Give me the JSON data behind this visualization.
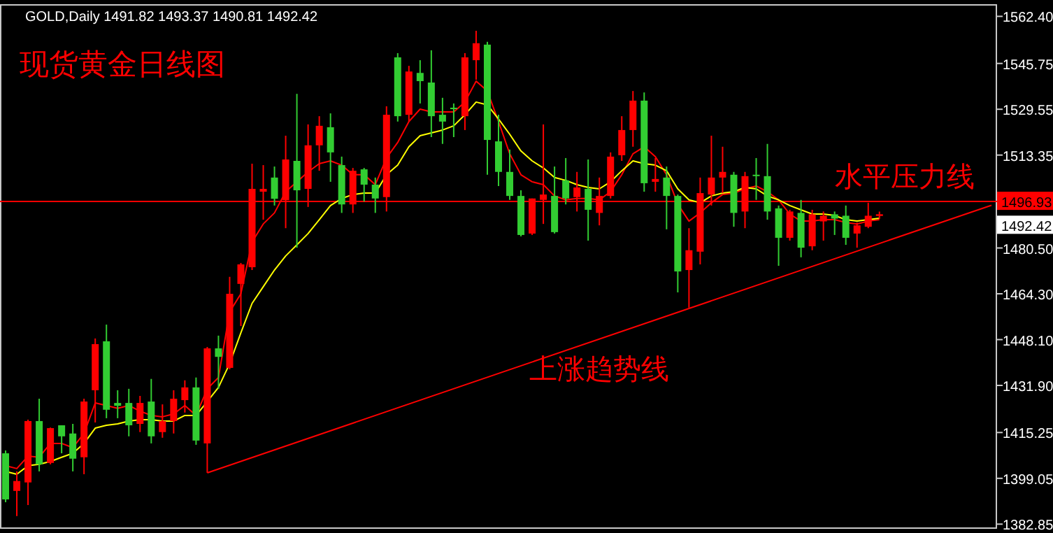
{
  "chart_data": {
    "type": "candlestick",
    "title": "GOLD,Daily  1491.82 1493.37 1490.81 1492.42",
    "subtitle": "现货黄金日线图",
    "categories": [
      null,
      null,
      null,
      null,
      null,
      null,
      null,
      null,
      null,
      null,
      null,
      null,
      null,
      null,
      null,
      null,
      null,
      null,
      null,
      null,
      null,
      null,
      null,
      null,
      null,
      null,
      null,
      null,
      null,
      null,
      null,
      null,
      null,
      null,
      null,
      null,
      null,
      null,
      null,
      null,
      null,
      null,
      null,
      null,
      null,
      null,
      null,
      null,
      null,
      null,
      null,
      null,
      null,
      null,
      null,
      null,
      null,
      null,
      null,
      null,
      null,
      null,
      null,
      null,
      null,
      null,
      null,
      null,
      null,
      null,
      null,
      null,
      null,
      null,
      null,
      null,
      null,
      null,
      null,
      null,
      null,
      null,
      null,
      null,
      null,
      null,
      null,
      null,
      null
    ],
    "colors": [
      "#32cd32",
      "#ff0000",
      "#ff0000",
      "#32cd32",
      "#ff0000",
      "#32cd32",
      "#32cd32",
      "#ff0000",
      "#ff0000",
      "#32cd32",
      "#32cd32",
      "#32cd32",
      "#ff0000",
      "#32cd32",
      "#ff0000",
      "#ff0000",
      "#ff0000",
      "#32cd32",
      "#ff0000",
      "#32cd32",
      "#ff0000",
      "#ff0000",
      "#ff0000",
      "#ff0000",
      "#32cd32",
      "#ff0000",
      "#32cd32",
      "#ff0000",
      "#ff0000",
      "#32cd32",
      "#32cd32",
      "#ff0000",
      "#32cd32",
      "#32cd32",
      "#ff0000",
      "#32cd32",
      "#ff0000",
      "#32cd32",
      "#32cd32",
      "#32cd32",
      "#32cd32",
      "#ff0000",
      "#ff0000",
      "#32cd32",
      "#32cd32",
      "#32cd32",
      "#32cd32",
      "#ff0000",
      "#ff0000",
      "#32cd32",
      "#32cd32",
      "#ff0000",
      "#32cd32",
      "#ff0000",
      "#ff0000",
      "#ff0000",
      "#ff0000",
      "#32cd32",
      "#ff0000",
      "#32cd32",
      "#32cd32",
      "#ff0000",
      "#ff0000",
      "#ff0000",
      "#ff0000",
      "#32cd32",
      "#ff0000",
      "#32cd32",
      "#32cd32",
      "#32cd32",
      "#ff0000",
      "#32cd32",
      "#ff0000",
      "#ff0000",
      "#32cd32",
      "#32cd32",
      "#ff0000",
      "#ff0000",
      "#ff0000",
      null,
      null,
      null,
      null,
      null,
      null,
      null,
      null,
      null,
      null
    ],
    "ohlc": [
      [
        1407.9,
        1408.9,
        1390.6,
        1391.6
      ],
      [
        1394.6,
        1401.5,
        1385.7,
        1398.1
      ],
      [
        1397.6,
        1419.8,
        1389.6,
        1419.3
      ],
      [
        1419.3,
        1427.2,
        1401.5,
        1404.0
      ],
      [
        1404.5,
        1417.0,
        1404.0,
        1416.8
      ],
      [
        1417.8,
        1417.8,
        1407.9,
        1413.9
      ],
      [
        1414.9,
        1418.3,
        1401.5,
        1406.0
      ],
      [
        1406.5,
        1427.2,
        1400.5,
        1426.2
      ],
      [
        1430.2,
        1448.5,
        1418.8,
        1446.5
      ],
      [
        1447.5,
        1453.4,
        1420.3,
        1423.3
      ],
      [
        1425.7,
        1430.2,
        1420.3,
        1424.7
      ],
      [
        1425.7,
        1430.7,
        1413.9,
        1417.8
      ],
      [
        1418.3,
        1428.2,
        1415.4,
        1425.7
      ],
      [
        1426.2,
        1434.2,
        1411.4,
        1413.9
      ],
      [
        1415.4,
        1425.2,
        1413.4,
        1419.3
      ],
      [
        1419.3,
        1430.2,
        1414.9,
        1427.2
      ],
      [
        1426.7,
        1433.7,
        1422.3,
        1431.2
      ],
      [
        1431.2,
        1434.7,
        1410.9,
        1412.4
      ],
      [
        1411.4,
        1445.5,
        1401.0,
        1445.0
      ],
      [
        1445.0,
        1449.5,
        1430.7,
        1442.0
      ],
      [
        1438.1,
        1470.3,
        1437.6,
        1464.3
      ],
      [
        1467.8,
        1475.2,
        1452.9,
        1474.7
      ],
      [
        1473.7,
        1510.3,
        1472.7,
        1501.4
      ],
      [
        1500.4,
        1509.8,
        1490.5,
        1501.4
      ],
      [
        1505.4,
        1509.3,
        1495.5,
        1497.9
      ],
      [
        1497.4,
        1520.2,
        1487.5,
        1511.8
      ],
      [
        1511.3,
        1535.0,
        1480.6,
        1500.9
      ],
      [
        1501.4,
        1524.2,
        1495.0,
        1516.8
      ],
      [
        1516.8,
        1527.1,
        1507.8,
        1523.7
      ],
      [
        1523.2,
        1528.1,
        1503.9,
        1514.3
      ],
      [
        1509.8,
        1512.8,
        1492.9,
        1495.9
      ],
      [
        1495.9,
        1508.8,
        1492.9,
        1507.8
      ],
      [
        1508.3,
        1508.8,
        1496.9,
        1502.9
      ],
      [
        1502.9,
        1505.4,
        1492.9,
        1498.0
      ],
      [
        1498.5,
        1530.6,
        1493.4,
        1527.6
      ],
      [
        1547.9,
        1549.4,
        1525.2,
        1527.1
      ],
      [
        1527.6,
        1544.9,
        1525.2,
        1542.9
      ],
      [
        1542.4,
        1546.9,
        1531.6,
        1539.5
      ],
      [
        1539.0,
        1550.4,
        1519.7,
        1527.1
      ],
      [
        1527.6,
        1533.6,
        1517.3,
        1525.2
      ],
      [
        1530.1,
        1531.6,
        1519.7,
        1529.6
      ],
      [
        1527.1,
        1549.4,
        1522.2,
        1547.9
      ],
      [
        1546.9,
        1557.3,
        1540.0,
        1552.9
      ],
      [
        1552.4,
        1553.4,
        1506.4,
        1518.7
      ],
      [
        1518.2,
        1527.6,
        1502.4,
        1507.4
      ],
      [
        1507.4,
        1515.3,
        1497.5,
        1498.9
      ],
      [
        1498.9,
        1500.9,
        1484.6,
        1485.1
      ],
      [
        1485.6,
        1498.0,
        1485.1,
        1498.0
      ],
      [
        1497.5,
        1524.2,
        1489.0,
        1499.4
      ],
      [
        1498.9,
        1509.3,
        1485.6,
        1486.1
      ],
      [
        1504.4,
        1512.3,
        1495.9,
        1498.0
      ],
      [
        1498.5,
        1507.4,
        1493.4,
        1501.9
      ],
      [
        1501.4,
        1511.8,
        1483.1,
        1494.0
      ],
      [
        1492.9,
        1505.4,
        1488.5,
        1498.9
      ],
      [
        1498.9,
        1514.3,
        1498.0,
        1512.8
      ],
      [
        1513.3,
        1527.1,
        1511.3,
        1522.2
      ],
      [
        1522.2,
        1536.0,
        1516.3,
        1532.6
      ],
      [
        1532.6,
        1535.5,
        1500.4,
        1503.4
      ],
      [
        1503.9,
        1512.3,
        1500.4,
        1504.9
      ],
      [
        1505.4,
        1509.3,
        1487.1,
        1498.9
      ],
      [
        1498.9,
        1499.4,
        1464.8,
        1472.2
      ],
      [
        1472.7,
        1487.5,
        1459.4,
        1479.7
      ],
      [
        1479.2,
        1505.4,
        1474.7,
        1499.9
      ],
      [
        1499.4,
        1520.2,
        1495.5,
        1505.4
      ],
      [
        1505.4,
        1516.3,
        1499.9,
        1507.4
      ],
      [
        1506.4,
        1507.4,
        1488.0,
        1492.9
      ],
      [
        1493.4,
        1507.4,
        1487.5,
        1505.9
      ],
      [
        1506.4,
        1512.3,
        1497.5,
        1505.9
      ],
      [
        1505.9,
        1517.3,
        1490.5,
        1493.4
      ],
      [
        1494.5,
        1495.5,
        1474.2,
        1484.1
      ],
      [
        1484.1,
        1494.0,
        1483.1,
        1493.4
      ],
      [
        1492.9,
        1497.5,
        1477.2,
        1480.6
      ],
      [
        1481.1,
        1494.0,
        1479.7,
        1492.4
      ],
      [
        1489.9,
        1493.4,
        1483.1,
        1491.9
      ],
      [
        1492.4,
        1493.4,
        1485.1,
        1490.9
      ],
      [
        1491.9,
        1495.5,
        1481.6,
        1484.1
      ],
      [
        1485.6,
        1489.5,
        1480.6,
        1488.5
      ],
      [
        1488.0,
        1496.5,
        1487.5,
        1491.9
      ],
      [
        1491.82,
        1493.37,
        1490.81,
        1492.42
      ],
      null,
      null,
      null,
      null,
      null,
      null,
      null,
      null,
      null,
      null
    ],
    "series": [
      {
        "type": "line",
        "color": "#ff0000",
        "values": [
          1403.5,
          1402.5,
          1406.9,
          1406.5,
          1411.4,
          1411.4,
          1409.9,
          1414.9,
          1425.7,
          1424.8,
          1423.8,
          1424.8,
          1422.8,
          1421.3,
          1420.8,
          1421.8,
          1424.8,
          1421.3,
          1430.7,
          1434.7,
          1457.9,
          1464.3,
          1482.6,
          1489.0,
          1492.9,
          1500.4,
          1503.9,
          1507.4,
          1510.3,
          1511.3,
          1509.8,
          1506.4,
          1506.4,
          1502.9,
          1512.3,
          1517.8,
          1525.2,
          1529.6,
          1528.6,
          1528.6,
          1528.6,
          1532.1,
          1539.5,
          1536.0,
          1525.2,
          1513.8,
          1506.4,
          1503.9,
          1502.9,
          1498.9,
          1497.5,
          1498.0,
          1498.0,
          1497.5,
          1500.4,
          1506.4,
          1513.8,
          1516.3,
          1512.8,
          1506.4,
          1496.0,
          1490.0,
          1492.9,
          1496.5,
          1499.4,
          1499.9,
          1501.4,
          1502.4,
          1500.4,
          1497.5,
          1492.5,
          1490.0,
          1490.0,
          1490.5,
          1490.5,
          1489.5,
          1489.0,
          1490.0,
          1490.5,
          null,
          null,
          null,
          null,
          null,
          null,
          null,
          null,
          null,
          null
        ]
      },
      {
        "type": "line",
        "color": "#ffff00",
        "values": [
          1401.5,
          1400.5,
          1403.5,
          1404.0,
          1405.0,
          1406.5,
          1407.9,
          1411.4,
          1416.8,
          1417.8,
          1418.3,
          1419.3,
          1419.8,
          1419.8,
          1419.3,
          1419.3,
          1421.3,
          1421.3,
          1426.2,
          1431.2,
          1439.6,
          1450.5,
          1460.9,
          1466.8,
          1472.7,
          1477.7,
          1481.6,
          1485.6,
          1490.5,
          1495.5,
          1498.0,
          1499.4,
          1499.9,
          1499.9,
          1506.4,
          1509.8,
          1516.3,
          1520.2,
          1521.2,
          1522.2,
          1523.7,
          1527.6,
          1532.1,
          1531.1,
          1526.1,
          1520.7,
          1514.8,
          1511.3,
          1508.8,
          1505.4,
          1504.4,
          1502.9,
          1501.9,
          1501.4,
          1503.9,
          1507.8,
          1511.3,
          1510.3,
          1509.8,
          1507.8,
          1501.4,
          1497.5,
          1496.5,
          1498.9,
          1499.9,
          1500.4,
          1501.9,
          1501.4,
          1498.9,
          1497.5,
          1495.5,
          1494.0,
          1492.5,
          1492.5,
          1492.0,
          1490.5,
          1490.0,
          1490.5,
          1491.0,
          null,
          null,
          null,
          null,
          null,
          null,
          null,
          null,
          null,
          null
        ]
      },
      {
        "type": "line",
        "name": "上涨趋势线",
        "color": "#ff0000",
        "values": [
          null,
          null,
          null,
          null,
          null,
          null,
          null,
          null,
          null,
          null,
          null,
          null,
          null,
          null,
          null,
          null,
          null,
          null,
          1401.0,
          null,
          null,
          null,
          null,
          null,
          null,
          null,
          null,
          null,
          null,
          null,
          null,
          null,
          null,
          null,
          null,
          null,
          null,
          null,
          null,
          null,
          null,
          null,
          null,
          null,
          null,
          null,
          null,
          null,
          null,
          null,
          null,
          null,
          null,
          null,
          null,
          null,
          null,
          null,
          null,
          null,
          null,
          null,
          null,
          null,
          null,
          null,
          null,
          null,
          null,
          null,
          null,
          null,
          null,
          null,
          null,
          null,
          null,
          null,
          null,
          null,
          null,
          null,
          null,
          null,
          null,
          null,
          null,
          null,
          1495.6
        ]
      }
    ],
    "ref_lines": [
      {
        "axis": "y",
        "value": 1496.93,
        "label": "1496.93",
        "color": "#ff0000"
      }
    ],
    "annotations": [
      {
        "text": "水平压力线",
        "y": 1496.93
      },
      "1492.42"
    ],
    "ylim": [
      1381.2,
      1566.7
    ],
    "yticks": [
      {
        "value": 1562.4,
        "label": "1562.40"
      },
      1545.75,
      1529.55,
      1513.35,
      {
        "value": 1480.5,
        "label": "1480.50"
      },
      {
        "value": 1464.3,
        "label": "1464.30"
      },
      {
        "value": 1448.1,
        "label": "1448.10"
      },
      {
        "value": 1431.9,
        "label": "1431.90"
      },
      1415.25,
      1399.05,
      1382.85
    ],
    "tick_labels": "y"
  }
}
